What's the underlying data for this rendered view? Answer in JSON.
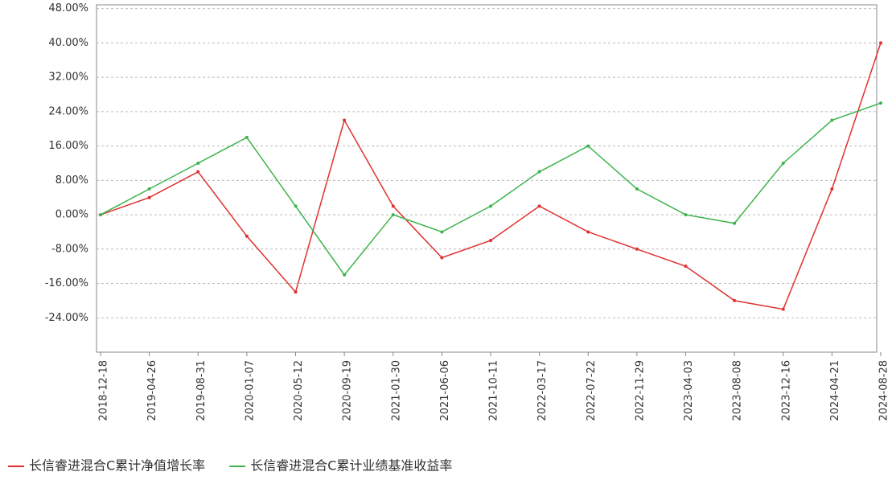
{
  "chart_data": {
    "type": "line",
    "categories": [
      "2018-12-18",
      "2019-04-26",
      "2019-08-31",
      "2020-01-07",
      "2020-05-12",
      "2020-09-19",
      "2021-01-30",
      "2021-06-06",
      "2021-10-11",
      "2022-03-17",
      "2022-07-22",
      "2022-11-29",
      "2023-04-03",
      "2023-08-08",
      "2023-12-16",
      "2024-04-21",
      "2024-08-28"
    ],
    "series": [
      {
        "name": "长信睿进混合C累计净值增长率",
        "color": "#e0302f",
        "values": [
          0,
          4,
          10,
          -5,
          -18,
          22,
          2,
          -10,
          -6,
          2,
          -4,
          -8,
          -12,
          -20,
          -22,
          6,
          40
        ]
      },
      {
        "name": "长信睿进混合C累计业绩基准收益率",
        "color": "#3cb44b",
        "values": [
          0,
          6,
          12,
          18,
          2,
          -14,
          0,
          -4,
          2,
          10,
          16,
          6,
          0,
          -2,
          12,
          22,
          26
        ]
      }
    ],
    "ylim": [
      -32,
      50
    ],
    "yticks": [
      {
        "value": -24,
        "label": "-24.00%"
      },
      {
        "value": -16,
        "label": "-16.00%"
      },
      {
        "value": -8,
        "label": "-8.00%"
      },
      {
        "value": 0,
        "label": "0.00%"
      },
      {
        "value": 8,
        "label": "8.00%"
      },
      {
        "value": 16,
        "label": "16.00%"
      },
      {
        "value": 24,
        "label": "24.00%"
      },
      {
        "value": 32,
        "label": "32.00%"
      },
      {
        "value": 40,
        "label": "40.00%"
      },
      {
        "value": 48,
        "label": "48.00%"
      }
    ],
    "grid": true
  }
}
